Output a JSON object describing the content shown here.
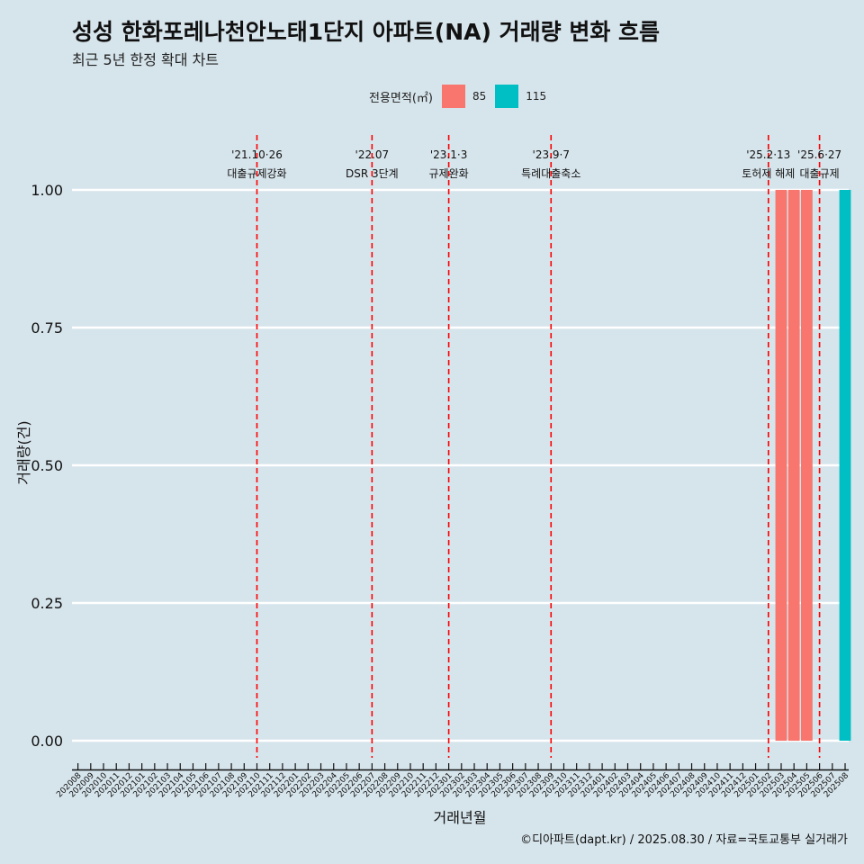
{
  "title": "성성 한화포레나천안노태1단지 아파트(NA) 거래량 변화 흐름",
  "subtitle": "최근 5년 한정 확대 차트",
  "caption": "©디아파트(dapt.kr) / 2025.08.30 / 자료=국토교통부 실거래가",
  "legend": {
    "title": "전용면적(㎡)",
    "items": [
      {
        "label": "85",
        "color": "#f8766d"
      },
      {
        "label": "115",
        "color": "#00bfc4"
      }
    ]
  },
  "chart_data": {
    "type": "bar",
    "xlabel": "거래년월",
    "ylabel": "거래량(건)",
    "ylim": [
      0,
      1
    ],
    "yticks": [
      "0.00",
      "0.25",
      "0.50",
      "0.75",
      "1.00"
    ],
    "grid": true,
    "legend_position": "top",
    "categories": [
      "202008",
      "202009",
      "202010",
      "202011",
      "202012",
      "202101",
      "202102",
      "202103",
      "202104",
      "202105",
      "202106",
      "202107",
      "202108",
      "202109",
      "202110",
      "202111",
      "202112",
      "202201",
      "202202",
      "202203",
      "202204",
      "202205",
      "202206",
      "202207",
      "202208",
      "202209",
      "202210",
      "202211",
      "202212",
      "202301",
      "202302",
      "202303",
      "202304",
      "202305",
      "202306",
      "202307",
      "202308",
      "202309",
      "202310",
      "202311",
      "202312",
      "202401",
      "202402",
      "202403",
      "202404",
      "202405",
      "202406",
      "202407",
      "202408",
      "202409",
      "202410",
      "202411",
      "202412",
      "202501",
      "202502",
      "202503",
      "202504",
      "202505",
      "202506",
      "202507",
      "202508"
    ],
    "series": [
      {
        "name": "85",
        "color": "#f8766d",
        "values": [
          0,
          0,
          0,
          0,
          0,
          0,
          0,
          0,
          0,
          0,
          0,
          0,
          0,
          0,
          0,
          0,
          0,
          0,
          0,
          0,
          0,
          0,
          0,
          0,
          0,
          0,
          0,
          0,
          0,
          0,
          0,
          0,
          0,
          0,
          0,
          0,
          0,
          0,
          0,
          0,
          0,
          0,
          0,
          0,
          0,
          0,
          0,
          0,
          0,
          0,
          0,
          0,
          0,
          0,
          0,
          1,
          1,
          1,
          0,
          0,
          0
        ]
      },
      {
        "name": "115",
        "color": "#00bfc4",
        "values": [
          0,
          0,
          0,
          0,
          0,
          0,
          0,
          0,
          0,
          0,
          0,
          0,
          0,
          0,
          0,
          0,
          0,
          0,
          0,
          0,
          0,
          0,
          0,
          0,
          0,
          0,
          0,
          0,
          0,
          0,
          0,
          0,
          0,
          0,
          0,
          0,
          0,
          0,
          0,
          0,
          0,
          0,
          0,
          0,
          0,
          0,
          0,
          0,
          0,
          0,
          0,
          0,
          0,
          0,
          0,
          0,
          0,
          0,
          0,
          0,
          1
        ]
      }
    ],
    "annotations": [
      {
        "date": "202110",
        "line1": "'21.10·26",
        "line2": "대출규제강화"
      },
      {
        "date": "202207",
        "line1": "'22.07",
        "line2": "DSR 3단계"
      },
      {
        "date": "202301",
        "line1": "'23.1·3",
        "line2": "규제완화"
      },
      {
        "date": "202309",
        "line1": "'23.9·7",
        "line2": "특례대출축소"
      },
      {
        "date": "202502",
        "line1": "'25.2·13",
        "line2": "토허제 해제"
      },
      {
        "date": "202506",
        "line1": "'25.6·27",
        "line2": "대출규제"
      }
    ]
  }
}
